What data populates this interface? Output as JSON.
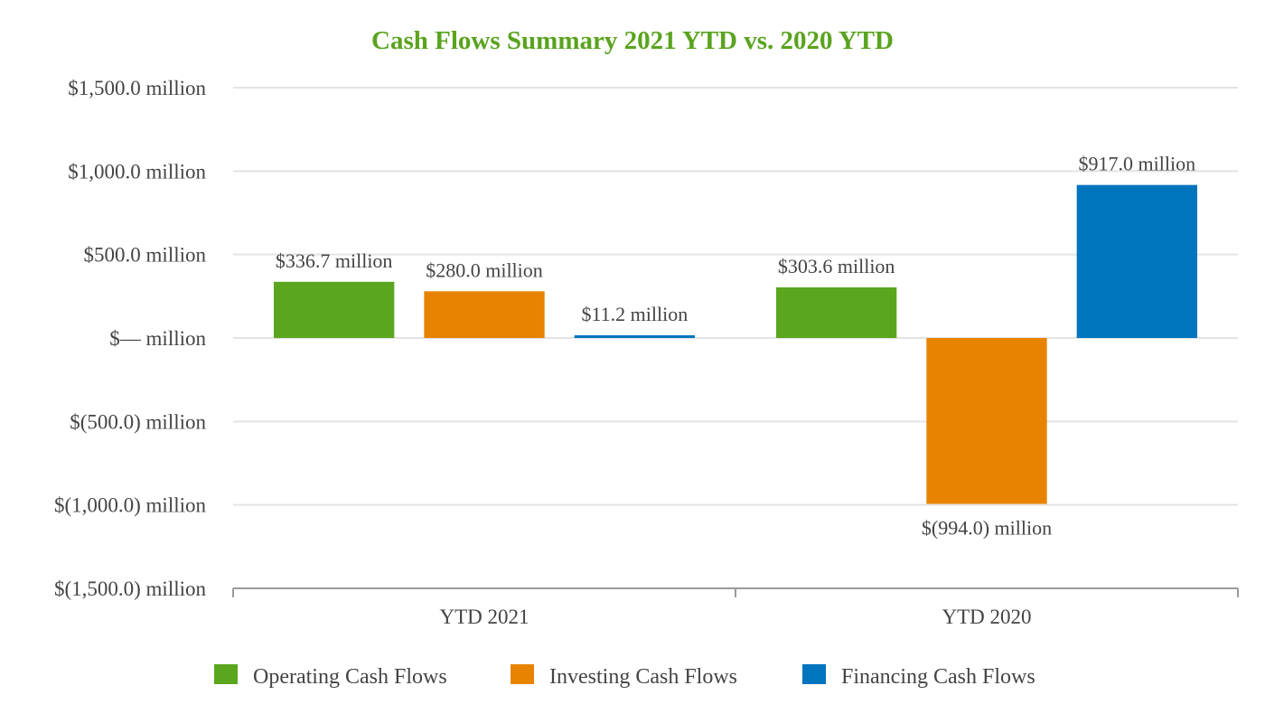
{
  "chart_data": {
    "type": "bar",
    "title": "Cash Flows Summary 2021 YTD vs. 2020 YTD",
    "title_color": "#5aa31e",
    "categories": [
      "YTD 2021",
      "YTD 2020"
    ],
    "series": [
      {
        "name": "Operating Cash Flows",
        "color": "#5aa61e",
        "values": [
          336.7,
          303.6
        ],
        "labels": [
          "$336.7 million",
          "$303.6 million"
        ]
      },
      {
        "name": "Investing Cash Flows",
        "color": "#e88302",
        "values": [
          280.0,
          -994.0
        ],
        "labels": [
          "$280.0 million",
          "$(994.0) million"
        ]
      },
      {
        "name": "Financing Cash Flows",
        "color": "#0174be",
        "values": [
          11.2,
          917.0
        ],
        "labels": [
          "$11.2 million",
          "$917.0 million"
        ]
      }
    ],
    "ylim": [
      -1500,
      1500
    ],
    "yticks": [
      1500,
      1000,
      500,
      0,
      -500,
      -1000,
      -1500
    ],
    "ytick_labels": [
      "$1,500.0 million",
      "$1,000.0 million",
      "$500.0 million",
      "$— million",
      "$(500.0) million",
      "$(1,000.0) million",
      "$(1,500.0) million"
    ],
    "xlabel": "",
    "ylabel": "",
    "grid": true,
    "legend_position": "bottom"
  }
}
